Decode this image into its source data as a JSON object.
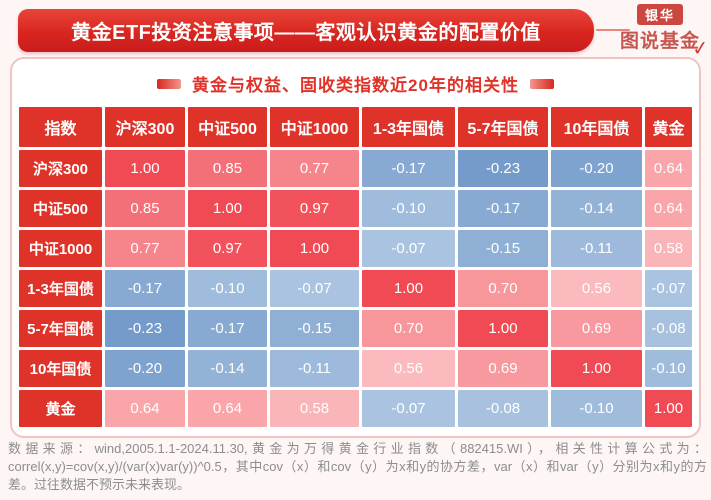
{
  "header": {
    "title": "黄金ETF投资注意事项——客观认识黄金的配置价值"
  },
  "logo": {
    "brand": "银华",
    "series": "图说基金",
    "check": "✓"
  },
  "subtitle": "黄金与权益、固收类指数近20年的相关性",
  "chart_data": {
    "type": "heatmap",
    "title": "黄金与权益、固收类指数近20年的相关性",
    "corner_label": "指数",
    "categories": [
      "沪深300",
      "中证500",
      "中证1000",
      "1-3年国债",
      "5-7年国债",
      "10年国债",
      "黄金"
    ],
    "matrix": [
      [
        1.0,
        0.85,
        0.77,
        -0.17,
        -0.23,
        -0.2,
        0.64
      ],
      [
        0.85,
        1.0,
        0.97,
        -0.1,
        -0.17,
        -0.14,
        0.64
      ],
      [
        0.77,
        0.97,
        1.0,
        -0.07,
        -0.15,
        -0.11,
        0.58
      ],
      [
        -0.17,
        -0.1,
        -0.07,
        1.0,
        0.7,
        0.56,
        -0.07
      ],
      [
        -0.23,
        -0.17,
        -0.15,
        0.7,
        1.0,
        0.69,
        -0.08
      ],
      [
        -0.2,
        -0.14,
        -0.11,
        0.56,
        0.69,
        1.0,
        -0.1
      ],
      [
        0.64,
        0.64,
        0.58,
        -0.07,
        -0.08,
        -0.1,
        1.0
      ]
    ],
    "value_decimals": 2,
    "colors": {
      "header_bg": "#df332a",
      "positive_min": "#fcc9cb",
      "positive_max": "#f04a54",
      "negative_min": "#b1c8e3",
      "negative_max": "#6d96c7"
    }
  },
  "footer": {
    "source_text": "数据来源：wind,2005.1.1-2024.11.30,黄金为万得黄金行业指数（882415.WI），相关性计算公式为：correl(x,y)=cov(x,y)/(var(x)var(y))^0.5，其中cov（x）和cov（y）为x和y的协方差，var（x）和var（y）分别为x和y的方差。过往数据不预示未来表现。"
  }
}
